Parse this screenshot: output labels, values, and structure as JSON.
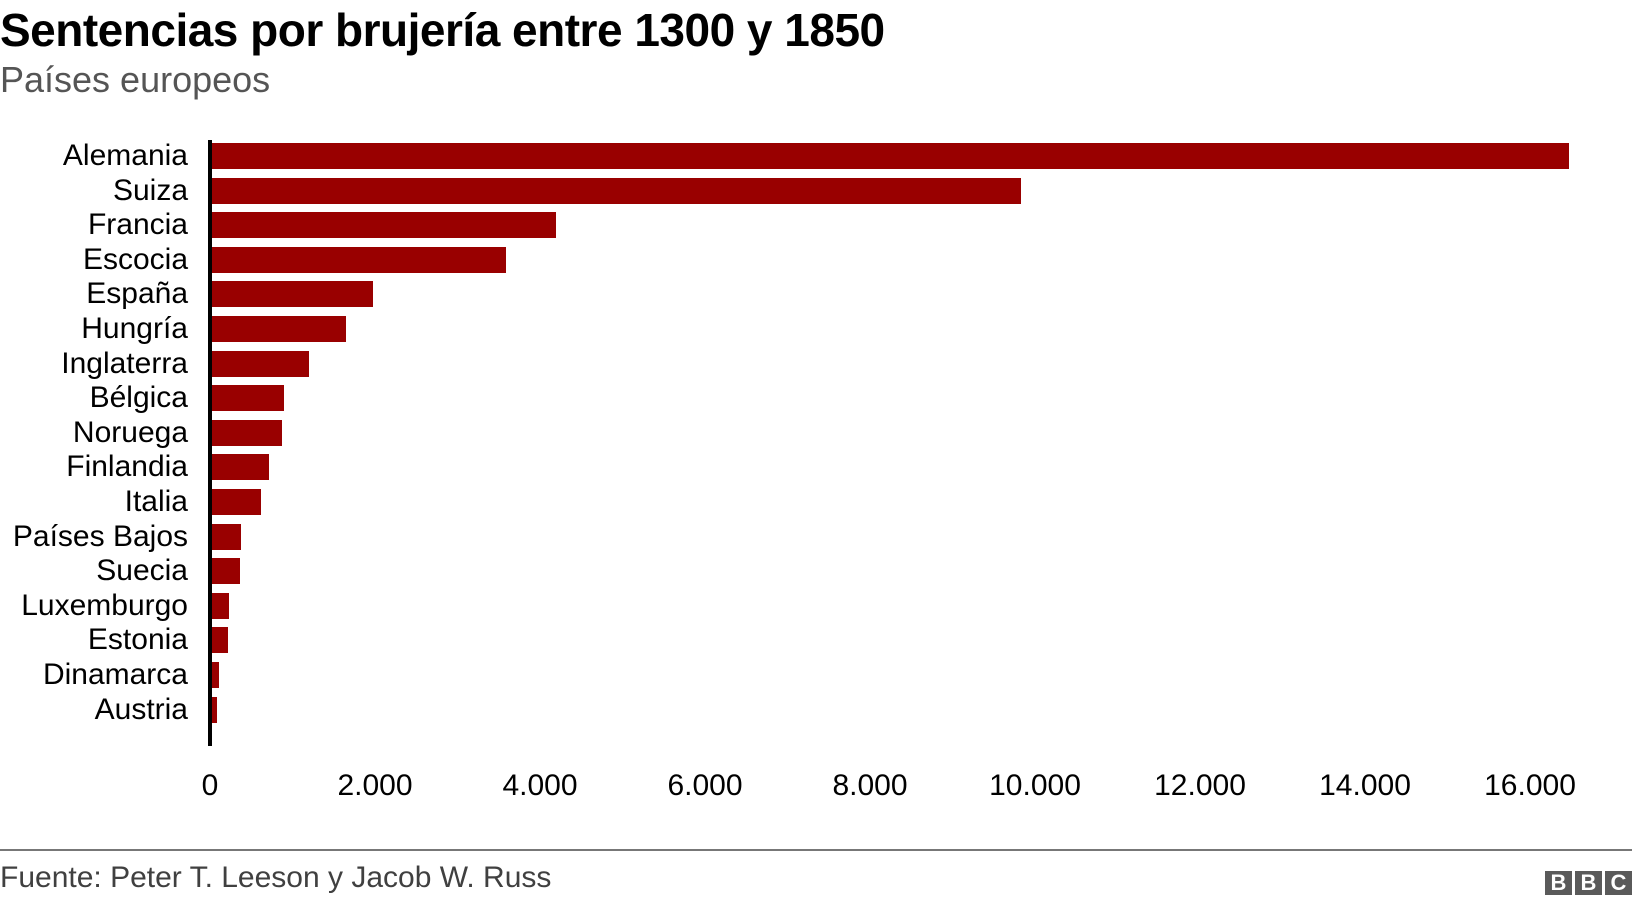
{
  "header": {
    "title": "Sentencias por brujería entre 1300 y 1850",
    "subtitle": "Países europeos"
  },
  "footer": {
    "source": "Fuente: Peter T. Leeson y Jacob W. Russ",
    "logo_letters": [
      "B",
      "B",
      "C"
    ],
    "logo_name": "bbc-logo"
  },
  "colors": {
    "bar": "#990000",
    "axis": "#000000",
    "subtitle": "#555555",
    "footer_rule": "#777777",
    "logo_bg": "#5a5a5a"
  },
  "chart_data": {
    "type": "bar",
    "orientation": "horizontal",
    "title": "Sentencias por brujería entre 1300 y 1850",
    "subtitle": "Países europeos",
    "xlabel": "",
    "ylabel": "",
    "xlim": [
      0,
      16000
    ],
    "x_ticks": [
      0,
      2000,
      4000,
      6000,
      8000,
      10000,
      12000,
      14000,
      16000
    ],
    "x_tick_labels": [
      "0",
      "2.000",
      "4.000",
      "6.000",
      "8.000",
      "10.000",
      "12.000",
      "14.000",
      "16.000"
    ],
    "grid": false,
    "legend": null,
    "categories": [
      "Alemania",
      "Suiza",
      "Francia",
      "Escocia",
      "España",
      "Hungría",
      "Inglaterra",
      "Bélgica",
      "Noruega",
      "Finlandia",
      "Italia",
      "Países Bajos",
      "Suecia",
      "Luxemburgo",
      "Estonia",
      "Dinamarca",
      "Austria"
    ],
    "values": [
      16470,
      9830,
      4190,
      3590,
      1980,
      1650,
      1200,
      900,
      870,
      720,
      620,
      380,
      360,
      230,
      220,
      110,
      90
    ],
    "source": "Fuente: Peter T. Leeson y Jacob W. Russ"
  }
}
